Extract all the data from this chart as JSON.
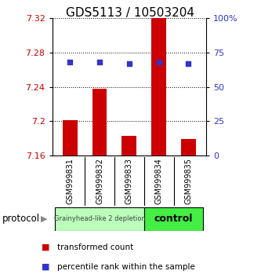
{
  "title": "GDS5113 / 10503204",
  "samples": [
    "GSM999831",
    "GSM999832",
    "GSM999833",
    "GSM999834",
    "GSM999835"
  ],
  "bar_values": [
    7.201,
    7.238,
    7.183,
    7.32,
    7.179
  ],
  "dot_values": [
    68,
    68,
    67,
    68,
    67
  ],
  "bar_bottom": 7.16,
  "ylim_left": [
    7.16,
    7.32
  ],
  "ylim_right": [
    0,
    100
  ],
  "yticks_left": [
    7.16,
    7.2,
    7.24,
    7.28,
    7.32
  ],
  "yticks_right": [
    0,
    25,
    50,
    75,
    100
  ],
  "ytick_labels_left": [
    "7.16",
    "7.2",
    "7.24",
    "7.28",
    "7.32"
  ],
  "ytick_labels_right": [
    "0",
    "25",
    "50",
    "75",
    "100%"
  ],
  "bar_color": "#cc0000",
  "dot_color": "#3333cc",
  "group1_label": "Grainyhead-like 2 depletion",
  "group2_label": "control",
  "group1_color": "#bbffbb",
  "group2_color": "#44ee44",
  "group1_indices": [
    0,
    1,
    2
  ],
  "group2_indices": [
    3,
    4
  ],
  "protocol_label": "protocol",
  "legend_bar_label": "transformed count",
  "legend_dot_label": "percentile rank within the sample",
  "bar_color_legend": "#cc0000",
  "dot_color_legend": "#3333cc",
  "title_fontsize": 11,
  "tick_fontsize": 8,
  "bar_width": 0.5,
  "bg_color": "#ffffff",
  "plot_bg_color": "#ffffff",
  "xticklabel_area_color": "#cccccc"
}
